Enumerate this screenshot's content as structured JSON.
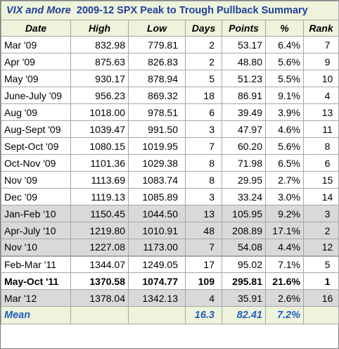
{
  "title": {
    "prefix": "VIX and More",
    "text": "2009-12 SPX Peak to Trough Pullback Summary"
  },
  "headers": [
    "Date",
    "High",
    "Low",
    "Days",
    "Points",
    "%",
    "Rank"
  ],
  "rows": [
    {
      "date": "Mar '09",
      "high": "832.98",
      "low": "779.81",
      "days": "2",
      "points": "53.17",
      "pct": "6.4%",
      "rank": "7"
    },
    {
      "date": "Apr '09",
      "high": "875.63",
      "low": "826.83",
      "days": "2",
      "points": "48.80",
      "pct": "5.6%",
      "rank": "9"
    },
    {
      "date": "May '09",
      "high": "930.17",
      "low": "878.94",
      "days": "5",
      "points": "51.23",
      "pct": "5.5%",
      "rank": "10"
    },
    {
      "date": "June-July '09",
      "high": "956.23",
      "low": "869.32",
      "days": "18",
      "points": "86.91",
      "pct": "9.1%",
      "rank": "4"
    },
    {
      "date": "Aug '09",
      "high": "1018.00",
      "low": "978.51",
      "days": "6",
      "points": "39.49",
      "pct": "3.9%",
      "rank": "13"
    },
    {
      "date": "Aug-Sept '09",
      "high": "1039.47",
      "low": "991.50",
      "days": "3",
      "points": "47.97",
      "pct": "4.6%",
      "rank": "11"
    },
    {
      "date": "Sept-Oct '09",
      "high": "1080.15",
      "low": "1019.95",
      "days": "7",
      "points": "60.20",
      "pct": "5.6%",
      "rank": "8"
    },
    {
      "date": "Oct-Nov '09",
      "high": "1101.36",
      "low": "1029.38",
      "days": "8",
      "points": "71.98",
      "pct": "6.5%",
      "rank": "6"
    },
    {
      "date": "Nov '09",
      "high": "1113.69",
      "low": "1083.74",
      "days": "8",
      "points": "29.95",
      "pct": "2.7%",
      "rank": "15"
    },
    {
      "date": "Dec '09",
      "high": "1119.13",
      "low": "1085.89",
      "days": "3",
      "points": "33.24",
      "pct": "3.0%",
      "rank": "14"
    },
    {
      "date": "Jan-Feb '10",
      "high": "1150.45",
      "low": "1044.50",
      "days": "13",
      "points": "105.95",
      "pct": "9.2%",
      "rank": "3"
    },
    {
      "date": "Apr-July '10",
      "high": "1219.80",
      "low": "1010.91",
      "days": "48",
      "points": "208.89",
      "pct": "17.1%",
      "rank": "2"
    },
    {
      "date": "Nov '10",
      "high": "1227.08",
      "low": "1173.00",
      "days": "7",
      "points": "54.08",
      "pct": "4.4%",
      "rank": "12"
    },
    {
      "date": "Feb-Mar '11",
      "high": "1344.07",
      "low": "1249.05",
      "days": "17",
      "points": "95.02",
      "pct": "7.1%",
      "rank": "5"
    },
    {
      "date": "May-Oct '11",
      "high": "1370.58",
      "low": "1074.77",
      "days": "109",
      "points": "295.81",
      "pct": "21.6%",
      "rank": "1"
    },
    {
      "date": "Mar '12",
      "high": "1378.04",
      "low": "1342.13",
      "days": "4",
      "points": "35.91",
      "pct": "2.6%",
      "rank": "16"
    }
  ],
  "mean": {
    "label": "Mean",
    "days": "16.3",
    "points": "82.41",
    "pct": "7.2%"
  },
  "colors": {
    "header_bg": "#eef3dc",
    "title_text": "#1f3f99",
    "mean_text": "#1f5fbf",
    "gray_row_bg": "#d9d9d9"
  }
}
